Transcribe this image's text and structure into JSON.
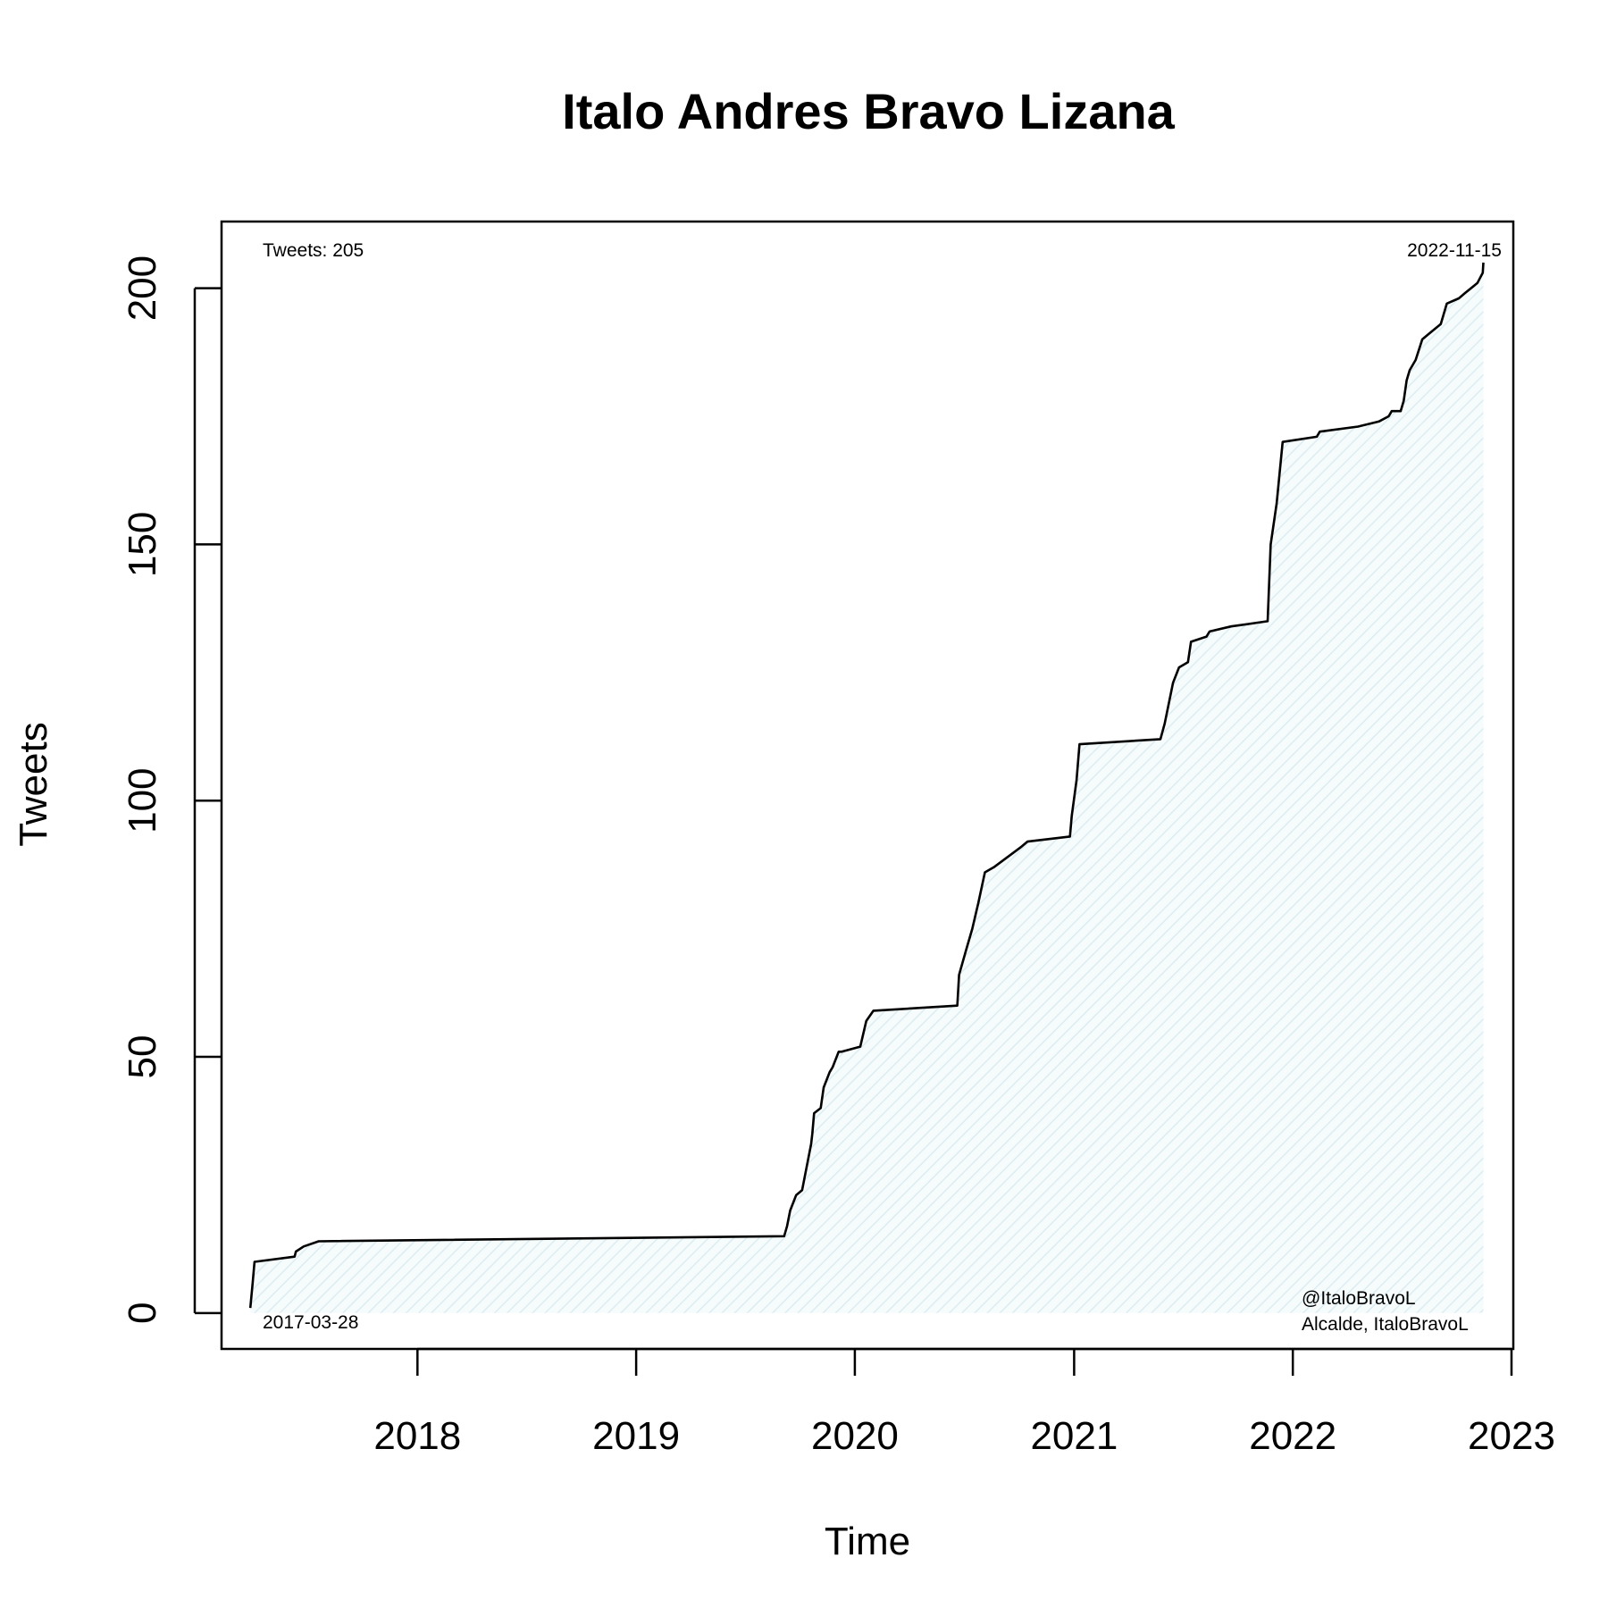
{
  "chart_data": {
    "type": "area",
    "title": "Italo Andres Bravo Lizana",
    "xlabel": "Time",
    "ylabel": "Tweets",
    "x_ticks": [
      "2018",
      "2019",
      "2020",
      "2021",
      "2022",
      "2023"
    ],
    "y_ticks": [
      0,
      50,
      100,
      150,
      200
    ],
    "ylim": [
      -7,
      213
    ],
    "xlim": [
      "2017-02-08",
      "2023-01-04"
    ],
    "grid": false,
    "line_color": "#000000",
    "fill_color": "#eef6f8",
    "annotations": {
      "count": "Tweets: 205",
      "start_date": "2017-03-28",
      "end_date": "2022-11-15",
      "handle": "@ItaloBravoL",
      "description": "Alcalde, ItaloBravoL"
    },
    "series": [
      {
        "x": [
          "2017-03-28",
          "2017-04-01",
          "2017-04-04",
          "2017-06-10",
          "2017-06-12",
          "2017-06-25",
          "2017-07-20",
          "2019-09-05",
          "2019-09-10",
          "2019-09-15",
          "2019-09-25",
          "2019-10-05",
          "2019-10-20",
          "2019-10-22",
          "2019-10-25",
          "2019-11-05",
          "2019-11-10",
          "2019-11-20",
          "2019-11-25",
          "2019-12-05",
          "2019-12-10",
          "2020-01-10",
          "2020-01-20",
          "2020-02-01",
          "2020-06-20",
          "2020-06-23",
          "2020-07-05",
          "2020-07-15",
          "2020-07-25",
          "2020-08-05",
          "2020-08-20",
          "2020-10-05",
          "2020-10-15",
          "2020-12-25",
          "2020-12-28",
          "2021-01-05",
          "2021-01-10",
          "2021-05-25",
          "2021-06-01",
          "2021-06-15",
          "2021-06-25",
          "2021-07-10",
          "2021-07-15",
          "2021-08-10",
          "2021-08-15",
          "2021-09-20",
          "2021-11-20",
          "2021-11-25",
          "2021-12-05",
          "2021-12-15",
          "2022-02-10",
          "2022-02-15",
          "2022-04-20",
          "2022-05-25",
          "2022-06-10",
          "2022-06-15",
          "2022-06-30",
          "2022-07-05",
          "2022-07-10",
          "2022-07-15",
          "2022-07-25",
          "2022-08-05",
          "2022-08-15",
          "2022-09-05",
          "2022-09-10",
          "2022-09-15",
          "2022-10-05",
          "2022-10-15",
          "2022-11-05",
          "2022-11-14",
          "2022-11-15"
        ],
        "y": [
          1,
          6,
          10,
          11,
          12,
          13,
          14,
          15,
          17,
          20,
          23,
          24,
          33,
          35,
          39,
          40,
          44,
          47,
          48,
          51,
          51,
          52,
          57,
          59,
          60,
          66,
          71,
          75,
          80,
          86,
          87,
          91,
          92,
          93,
          97,
          104,
          111,
          112,
          115,
          123,
          126,
          127,
          131,
          132,
          133,
          134,
          135,
          150,
          158,
          170,
          171,
          172,
          173,
          174,
          175,
          176,
          176,
          178,
          182,
          184,
          186,
          190,
          191,
          193,
          195,
          197,
          198,
          199,
          201,
          203,
          205
        ]
      }
    ]
  }
}
